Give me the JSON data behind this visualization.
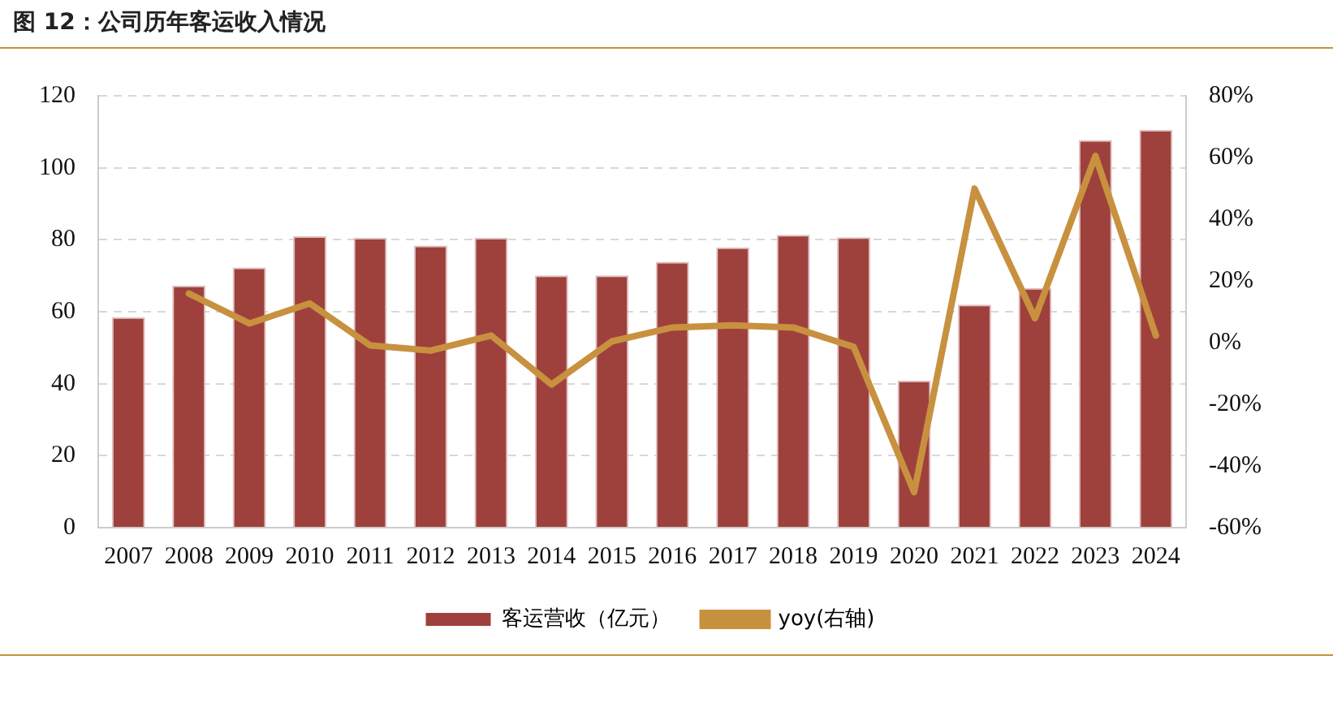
{
  "chart_data": {
    "type": "bar",
    "title": "图 12：公司历年客运收入情况",
    "categories": [
      "2007",
      "2008",
      "2009",
      "2010",
      "2011",
      "2012",
      "2013",
      "2014",
      "2015",
      "2016",
      "2017",
      "2018",
      "2019",
      "2020",
      "2021",
      "2022",
      "2023",
      "2024"
    ],
    "series": [
      {
        "name": "客运营收（亿元）",
        "color": "#9e413c",
        "values": [
          58.5,
          67.3,
          72.3,
          81.0,
          80.5,
          78.4,
          80.5,
          70.1,
          70.1,
          73.9,
          77.9,
          81.4,
          80.7,
          40.9,
          62.0,
          66.6,
          107.7,
          110.5
        ]
      },
      {
        "name": "yoy(右轴)",
        "type": "line",
        "axis": "y2",
        "color": "#c8913f",
        "values": [
          null,
          15.9,
          6.2,
          12.7,
          -0.9,
          -2.6,
          2.3,
          -13.6,
          0.4,
          4.9,
          5.6,
          4.9,
          -1.4,
          -48.5,
          49.9,
          7.9,
          60.5,
          2.3
        ]
      }
    ],
    "ylim": [
      0,
      120
    ],
    "yticks": [
      0,
      20,
      40,
      60,
      80,
      100,
      120
    ],
    "y2lim": [
      -60,
      80
    ],
    "y2ticks": [
      {
        "value": -60,
        "label": "-60%"
      },
      {
        "value": -40,
        "label": "-40%"
      },
      {
        "value": -20,
        "label": "-20%"
      },
      {
        "value": 0,
        "label": "0%"
      },
      {
        "value": 20,
        "label": "20%"
      },
      {
        "value": 40,
        "label": "40%"
      },
      {
        "value": 60,
        "label": "60%"
      },
      {
        "value": 80,
        "label": "80%"
      }
    ],
    "grid": "y",
    "legend": "bottom",
    "marker": "none",
    "line_style": "solid"
  }
}
